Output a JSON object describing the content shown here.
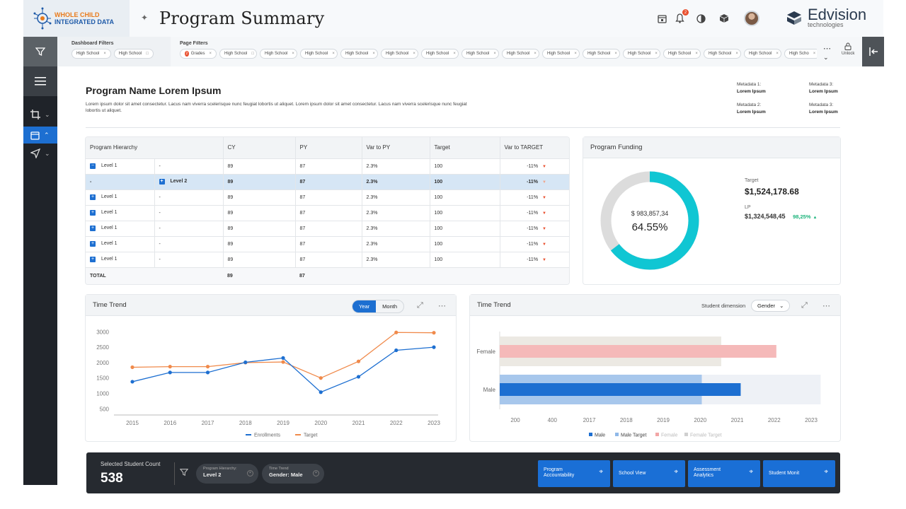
{
  "header": {
    "logo_line1": "WHOLE CHILD",
    "logo_line2": "INTEGRATED DATA",
    "title": "Program Summary",
    "notification_count": "2",
    "brand_name": "Edvision",
    "brand_sub": "technologies"
  },
  "filters": {
    "dashboard_label": "Dashboard Filters",
    "dashboard_chips": [
      "High School",
      "High School"
    ],
    "page_label": "Page Filters",
    "page_chips": [
      "Grades",
      "High School",
      "High School",
      "High School",
      "High School",
      "High School",
      "High School",
      "High School",
      "High School",
      "High School",
      "High School",
      "High School",
      "High School",
      "High School",
      "High School",
      "High Scho"
    ],
    "grades_count": "2",
    "unlock_label": "Unlock"
  },
  "program": {
    "title": "Program Name Lorem Ipsum",
    "description": "Lorem ipsum dolor sit amet consectetur. Lacus nam viverra scelerisque nunc feugiat lobortis ut aliquet. Lorem ipsum dolor sit amet consectetur. Lacus nam viverra scelerisque nunc feugiat lobortis ut aliquet.",
    "meta": [
      {
        "label": "Metadata 1:",
        "value": "Lorem Ipsum"
      },
      {
        "label": "Metadata 3:",
        "value": "Lorem Ipsum"
      },
      {
        "label": "Metadata 2:",
        "value": "Lorem Ipsum"
      },
      {
        "label": "Metadata 3:",
        "value": "Lorem Ipsum"
      }
    ]
  },
  "table": {
    "headers": [
      "Program Hierarchy",
      "CY",
      "PY",
      "Var to PY",
      "Target",
      "Var to TARGET"
    ],
    "rows": [
      {
        "level": "Level 1",
        "sub": "-",
        "cy": "89",
        "py": "87",
        "var_py": "2.3%",
        "target": "100",
        "var_target": "-11%",
        "icon": "minus",
        "selected": false
      },
      {
        "level": "-",
        "sub": "Level 2",
        "cy": "89",
        "py": "87",
        "var_py": "2.3%",
        "target": "100",
        "var_target": "-11%",
        "icon": "plus",
        "selected": true
      },
      {
        "level": "Level 1",
        "sub": "-",
        "cy": "89",
        "py": "87",
        "var_py": "2.3%",
        "target": "100",
        "var_target": "-11%",
        "icon": "plus",
        "selected": false
      },
      {
        "level": "Level 1",
        "sub": "-",
        "cy": "89",
        "py": "87",
        "var_py": "2.3%",
        "target": "100",
        "var_target": "-11%",
        "icon": "plus",
        "selected": false
      },
      {
        "level": "Level 1",
        "sub": "-",
        "cy": "89",
        "py": "87",
        "var_py": "2.3%",
        "target": "100",
        "var_target": "-11%",
        "icon": "plus",
        "selected": false
      },
      {
        "level": "Level 1",
        "sub": "-",
        "cy": "89",
        "py": "87",
        "var_py": "2.3%",
        "target": "100",
        "var_target": "-11%",
        "icon": "plus",
        "selected": false
      },
      {
        "level": "Level 1",
        "sub": "-",
        "cy": "89",
        "py": "87",
        "var_py": "2.3%",
        "target": "100",
        "var_target": "-11%",
        "icon": "plus",
        "selected": false
      }
    ],
    "total": {
      "label": "TOTAL",
      "cy": "89",
      "py": "87"
    }
  },
  "funding": {
    "title": "Program Funding",
    "center_amount": "$ 983,857,34",
    "center_percent": "64.55%",
    "percent_value": 64.55,
    "target_label": "Target",
    "target_value": "$1,524,178.68",
    "lp_label": "LP",
    "lp_value": "$1,324,548,45",
    "lp_change": "98,25%",
    "ring_color": "#10c6d3",
    "ring_bg": "#dcdcdc"
  },
  "time_trend_line": {
    "title": "Time Trend",
    "toggle": [
      "Year",
      "Month"
    ],
    "active_toggle": "Year"
  },
  "time_trend_bar": {
    "title": "Time Trend",
    "dimension_label": "Student dimension",
    "dimension_value": "Gender"
  },
  "chart_data": [
    {
      "type": "line",
      "x": [
        2015,
        2016,
        2017,
        2018,
        2019,
        2020,
        2021,
        2022,
        2023
      ],
      "series": [
        {
          "name": "Enrollments",
          "color": "#1d6fd1",
          "values": [
            1380,
            1680,
            1680,
            2010,
            2150,
            1040,
            1540,
            2400,
            2500
          ]
        },
        {
          "name": "Target",
          "color": "#f08a4b",
          "values": [
            1850,
            1870,
            1870,
            2000,
            2020,
            1500,
            2040,
            2980,
            2970
          ]
        }
      ],
      "y_ticks": [
        500,
        1000,
        1500,
        2000,
        2500,
        3000
      ],
      "ylim": [
        300,
        3100
      ],
      "legend": "bottom"
    },
    {
      "type": "bar",
      "orientation": "horizontal",
      "categories": [
        "Female",
        "Male"
      ],
      "series": [
        {
          "name": "Male",
          "color": "#1d6fd1"
        },
        {
          "name": "Male Target",
          "color": "#8fb8e8"
        },
        {
          "name": "Female",
          "color": "#f2a6a6"
        },
        {
          "name": "Female Target",
          "color": "#cfcfcf"
        }
      ],
      "bars": [
        {
          "category": "Female",
          "range_to": 2050,
          "target_to": 2440,
          "value_to": 2560
        },
        {
          "category": "Male",
          "range_to": 2970,
          "target_to": 1870,
          "value_to": 2230
        }
      ],
      "x_ticks": [
        200,
        400,
        2017,
        2018,
        2019,
        2020,
        2021,
        2022,
        2023
      ],
      "legend": "bottom"
    }
  ],
  "bottom": {
    "count_label": "Selected Student Count",
    "count_value": "538",
    "pills": [
      {
        "label": "Program Hierarchy:",
        "value": "Level 2"
      },
      {
        "label": "Time Trend",
        "value": "Gender: Male"
      }
    ],
    "nav_buttons": [
      "Program Accountability",
      "School View",
      "Assessment Analytics",
      "Student Monit"
    ]
  }
}
